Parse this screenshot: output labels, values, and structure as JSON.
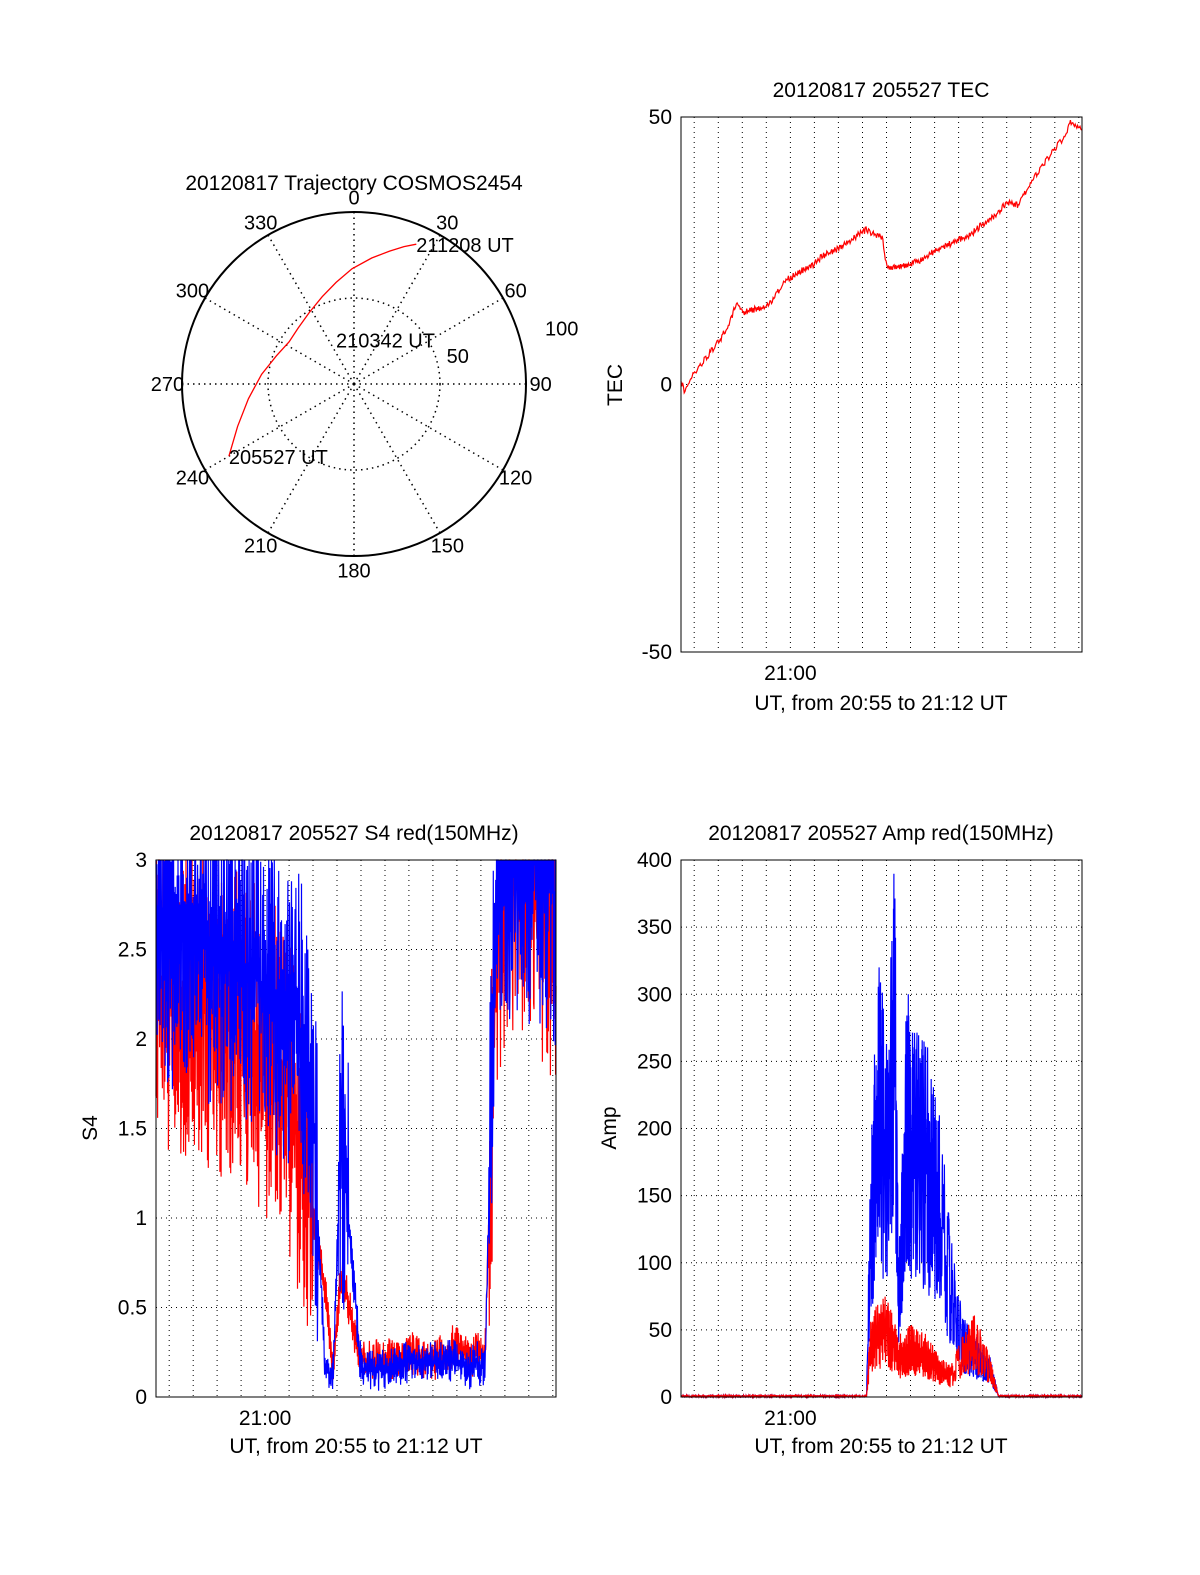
{
  "chart_data": [
    {
      "type": "polar",
      "title": "20120817 Trajectory COSMOS2454",
      "angle_ticks": [
        {
          "deg": 0,
          "label": "0"
        },
        {
          "deg": 30,
          "label": "30"
        },
        {
          "deg": 60,
          "label": "60"
        },
        {
          "deg": 90,
          "label": "90"
        },
        {
          "deg": 120,
          "label": "120"
        },
        {
          "deg": 150,
          "label": "150"
        },
        {
          "deg": 180,
          "label": "180"
        },
        {
          "deg": 210,
          "label": "210"
        },
        {
          "deg": 240,
          "label": "240"
        },
        {
          "deg": 270,
          "label": "270"
        },
        {
          "deg": 300,
          "label": "300"
        },
        {
          "deg": 330,
          "label": "330"
        }
      ],
      "radial_ticks": [
        {
          "r": 50,
          "label": "50"
        },
        {
          "r": 100,
          "label": "100"
        }
      ],
      "rlim": [
        0,
        100
      ],
      "trajectory_color": "#ff0000",
      "trajectory": [
        {
          "az": 240,
          "r": 84
        },
        {
          "az": 250,
          "r": 72
        },
        {
          "az": 262,
          "r": 62
        },
        {
          "az": 276,
          "r": 54
        },
        {
          "az": 290,
          "r": 48
        },
        {
          "az": 303,
          "r": 45
        },
        {
          "az": 315,
          "r": 46
        },
        {
          "az": 328,
          "r": 49
        },
        {
          "az": 340,
          "r": 54
        },
        {
          "az": 350,
          "r": 60
        },
        {
          "az": 359,
          "r": 67
        },
        {
          "az": 8,
          "r": 74
        },
        {
          "az": 15,
          "r": 80
        },
        {
          "az": 20,
          "r": 85
        },
        {
          "az": 24,
          "r": 89
        }
      ],
      "annotations": [
        {
          "text": "205527 UT",
          "az": 240,
          "r": 84
        },
        {
          "text": "210342 UT",
          "az": 338,
          "r": 28
        },
        {
          "text": "211208 UT",
          "az": 24,
          "r": 89
        }
      ]
    },
    {
      "type": "line",
      "title": "20120817 205527 TEC",
      "xlabel": "UT, from 20:55 to 21:12 UT",
      "ylabel": "TEC",
      "xlim": [
        "20:55:27",
        "21:12:08"
      ],
      "ylim": [
        -50,
        50
      ],
      "yticks": [
        -50,
        0,
        50
      ],
      "xtick_labels": [
        "21:00"
      ],
      "grid": true,
      "series": [
        {
          "color": "#ff0000",
          "x": [
            "20:55:27",
            "20:55:35",
            "20:55:50",
            "20:56:10",
            "20:56:30",
            "20:56:50",
            "20:57:10",
            "20:57:30",
            "20:57:45",
            "20:58:00",
            "20:58:30",
            "20:59:00",
            "20:59:20",
            "20:59:40",
            "21:00:00",
            "21:00:20",
            "21:00:50",
            "21:01:20",
            "21:01:50",
            "21:02:20",
            "21:02:50",
            "21:03:10",
            "21:03:30",
            "21:03:50",
            "21:04:00",
            "21:04:30",
            "21:05:00",
            "21:05:30",
            "21:06:00",
            "21:06:30",
            "21:07:00",
            "21:07:30",
            "21:08:00",
            "21:08:30",
            "21:09:00",
            "21:09:30",
            "21:09:40",
            "21:10:00",
            "21:10:30",
            "21:11:00",
            "21:11:20",
            "21:11:40",
            "21:11:50",
            "21:12:08"
          ],
          "values": [
            0.5,
            -1,
            1,
            3,
            5,
            7,
            9,
            12,
            15,
            13.5,
            14,
            14.5,
            16,
            19,
            20,
            21,
            22,
            24,
            25,
            26.5,
            28,
            29,
            28,
            27.5,
            22,
            22,
            22.5,
            23.5,
            25,
            26,
            27,
            28,
            30,
            31.5,
            34,
            33.5,
            35,
            38,
            41,
            44,
            46,
            49,
            48.5,
            48
          ]
        }
      ]
    },
    {
      "type": "line",
      "title": "20120817 205527 S4 red(150MHz)",
      "xlabel": "UT, from 20:55 to 21:12 UT",
      "ylabel": "S4",
      "xlim": [
        "20:55:27",
        "21:12:08"
      ],
      "ylim": [
        0,
        3
      ],
      "yticks": [
        0,
        0.5,
        1,
        1.5,
        2,
        2.5,
        3
      ],
      "ytick_labels": [
        "0",
        "0.5",
        "1",
        "1.5",
        "2",
        "2.5",
        "3"
      ],
      "xtick_labels": [
        "21:00"
      ],
      "grid": true,
      "series": [
        {
          "color": "#ff0000",
          "x": [
            "20:55:27",
            "20:56:00",
            "20:57:00",
            "20:58:00",
            "20:59:00",
            "21:00:00",
            "21:00:50",
            "21:01:20",
            "21:01:50",
            "21:02:00",
            "21:02:30",
            "21:02:50",
            "21:03:10",
            "21:04:00",
            "21:05:00",
            "21:06:00",
            "21:07:00",
            "21:07:30",
            "21:08:00",
            "21:08:30",
            "21:08:50",
            "21:09:10",
            "21:09:40",
            "21:10:10",
            "21:10:40",
            "21:11:10",
            "21:11:40",
            "21:12:08"
          ],
          "values": [
            2.4,
            2.2,
            2.2,
            2.1,
            2.1,
            1.9,
            1.8,
            1.5,
            1.2,
            1.0,
            0.6,
            0.15,
            0.7,
            0.2,
            0.2,
            0.25,
            0.2,
            0.25,
            0.3,
            0.2,
            0.25,
            0.2,
            2.6,
            3,
            2.8,
            3,
            2.7,
            2.6
          ]
        },
        {
          "color": "#0000ff",
          "x": [
            "20:55:27",
            "20:56:00",
            "20:57:00",
            "20:58:00",
            "20:59:00",
            "21:00:00",
            "21:00:50",
            "21:01:20",
            "21:01:50",
            "21:02:00",
            "21:02:30",
            "21:02:50",
            "21:03:10",
            "21:04:00",
            "21:05:00",
            "21:06:00",
            "21:07:00",
            "21:07:30",
            "21:08:00",
            "21:08:30",
            "21:08:50",
            "21:09:10",
            "21:09:40",
            "21:10:10",
            "21:10:40",
            "21:11:10",
            "21:11:40",
            "21:12:08"
          ],
          "values": [
            2.6,
            2.6,
            2.6,
            2.5,
            2.4,
            2.3,
            2.2,
            2.1,
            1.8,
            1.6,
            0.15,
            0.12,
            1.5,
            0.15,
            0.15,
            0.2,
            0.2,
            0.2,
            0.2,
            0.15,
            0.2,
            0.15,
            3,
            3,
            2.9,
            3,
            2.9,
            2.8
          ]
        }
      ]
    },
    {
      "type": "line",
      "title": "20120817 205527 Amp red(150MHz)",
      "xlabel": "UT, from 20:55 to 21:12 UT",
      "ylabel": "Amp",
      "xlim": [
        "20:55:27",
        "21:12:08"
      ],
      "ylim": [
        0,
        400
      ],
      "yticks": [
        0,
        50,
        100,
        150,
        200,
        250,
        300,
        350,
        400
      ],
      "xtick_labels": [
        "21:00"
      ],
      "grid": true,
      "series": [
        {
          "color": "#0000ff",
          "x": [
            "20:55:27",
            "21:00:00",
            "21:03:10",
            "21:03:20",
            "21:03:40",
            "21:04:00",
            "21:04:20",
            "21:04:30",
            "21:04:50",
            "21:05:10",
            "21:05:40",
            "21:06:10",
            "21:06:40",
            "21:07:10",
            "21:07:40",
            "21:08:20",
            "21:08:40",
            "21:12:08"
          ],
          "values": [
            0,
            0,
            0,
            120,
            220,
            170,
            280,
            60,
            200,
            180,
            170,
            150,
            80,
            40,
            30,
            20,
            0,
            0
          ]
        },
        {
          "color": "#ff0000",
          "x": [
            "20:55:27",
            "21:00:00",
            "21:03:10",
            "21:03:20",
            "21:04:00",
            "21:04:30",
            "21:05:00",
            "21:05:40",
            "21:06:10",
            "21:06:40",
            "21:07:10",
            "21:07:40",
            "21:08:20",
            "21:08:40",
            "21:12:08"
          ],
          "values": [
            0,
            0,
            0,
            40,
            50,
            30,
            35,
            30,
            20,
            15,
            30,
            40,
            20,
            0,
            0
          ]
        }
      ]
    }
  ]
}
